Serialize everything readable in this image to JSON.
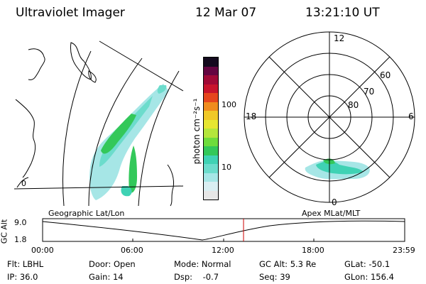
{
  "header": {
    "instrument": "Ultraviolet Imager",
    "date": "12 Mar 07",
    "time": "13:21:10 UT"
  },
  "geo_panel": {
    "label": "Geographic Lat/Lon",
    "lon_tick": "0"
  },
  "colorbar": {
    "unit_label": "photon cm⁻²s⁻¹",
    "ticks": [
      {
        "label": "100",
        "value": 100
      },
      {
        "label": "10",
        "value": 10
      }
    ],
    "colors": [
      "#e6e6e6",
      "#d9eef2",
      "#a6e6e6",
      "#6cdccc",
      "#3fd2b4",
      "#33c85a",
      "#6edc3c",
      "#b4e63c",
      "#e6e632",
      "#f0c828",
      "#f08c1e",
      "#e6461e",
      "#c8142d",
      "#a00a37",
      "#640541",
      "#140a1e"
    ]
  },
  "polar_panel": {
    "label": "Apex MLat/MLT",
    "mlt_labels": {
      "top": "12",
      "bottom": "0",
      "left": "18",
      "right": "6"
    },
    "lat_labels": [
      "60",
      "70",
      "80"
    ]
  },
  "altitude_plot": {
    "ylabel": "GC Alt",
    "yticks": [
      "9.0",
      "1.8"
    ],
    "xticks": [
      "00:00",
      "06:00",
      "12:00",
      "18:00",
      "23:59"
    ],
    "curve_color": "#000000",
    "marker_color": "#cc0000"
  },
  "status": {
    "filter": "Flt: LBHL",
    "ip": "IP: 36.0",
    "door": "Door: Open",
    "gain": "Gain: 14",
    "mode": "Mode: Normal",
    "dsp": "Dsp:    -0.7",
    "gc_alt": "GC Alt: 5.3 Re",
    "seq": "Seq: 39",
    "glat": "GLat: -50.1",
    "glon": "GLon: 156.4"
  }
}
